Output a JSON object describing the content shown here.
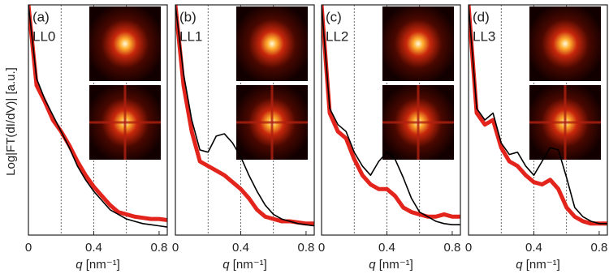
{
  "chart_data": [
    {
      "type": "line",
      "panel": "(a)",
      "label": "LL0",
      "ylabel": "Log|FT(dI/dV)| [a.u.]",
      "x_symbol": "q",
      "x_unit": "[nm⁻¹]",
      "x": [
        0,
        0.05,
        0.1,
        0.15,
        0.2,
        0.25,
        0.3,
        0.35,
        0.4,
        0.45,
        0.5,
        0.55,
        0.6,
        0.65,
        0.7,
        0.75,
        0.8,
        0.85
      ],
      "xlim": [
        0,
        0.85
      ],
      "xticks": [
        0,
        0.4,
        0.8
      ],
      "xgrid": [
        0.2,
        0.4,
        0.6
      ],
      "ylim": [
        0,
        10
      ],
      "series": [
        {
          "color": "#e2241c",
          "values": [
            10,
            6.5,
            5.8,
            5.0,
            4.5,
            3.9,
            3.2,
            2.6,
            2.1,
            1.7,
            1.3,
            1.0,
            0.9,
            0.8,
            0.75,
            0.7,
            0.7,
            0.65
          ]
        },
        {
          "color": "#000000",
          "values": [
            10,
            6.8,
            5.9,
            5.2,
            4.5,
            3.8,
            3.0,
            2.4,
            1.9,
            1.5,
            1.1,
            0.9,
            0.7,
            0.6,
            0.5,
            0.45,
            0.4,
            0.35
          ]
        }
      ]
    },
    {
      "type": "line",
      "panel": "(b)",
      "label": "LL1",
      "x_symbol": "q",
      "x_unit": "[nm⁻¹]",
      "x": [
        0,
        0.05,
        0.1,
        0.15,
        0.2,
        0.25,
        0.3,
        0.35,
        0.4,
        0.45,
        0.5,
        0.55,
        0.6,
        0.65,
        0.7,
        0.75,
        0.8,
        0.85
      ],
      "xlim": [
        0,
        0.85
      ],
      "xticks": [
        0,
        0.4,
        0.8
      ],
      "xgrid": [
        0.2,
        0.4,
        0.6
      ],
      "ylim": [
        0,
        10
      ],
      "series": [
        {
          "color": "#e2241c",
          "values": [
            10,
            6.5,
            4.5,
            3.2,
            3.0,
            2.8,
            2.6,
            2.3,
            2.0,
            1.6,
            1.1,
            0.8,
            0.7,
            0.6,
            0.6,
            0.55,
            0.5,
            0.5
          ]
        },
        {
          "color": "#000000",
          "values": [
            10,
            7.0,
            5.0,
            3.7,
            3.6,
            4.3,
            4.4,
            4.0,
            3.4,
            2.6,
            1.9,
            1.3,
            0.9,
            0.7,
            0.6,
            0.5,
            0.45,
            0.4
          ]
        }
      ]
    },
    {
      "type": "line",
      "panel": "(c)",
      "label": "LL2",
      "x_symbol": "q",
      "x_unit": "[nm⁻¹]",
      "x": [
        0,
        0.05,
        0.1,
        0.15,
        0.2,
        0.25,
        0.3,
        0.35,
        0.4,
        0.45,
        0.5,
        0.55,
        0.6,
        0.65,
        0.7,
        0.75,
        0.8,
        0.85
      ],
      "xlim": [
        0,
        0.85
      ],
      "xticks": [
        0,
        0.4,
        0.8
      ],
      "xgrid": [
        0.2,
        0.4,
        0.6
      ],
      "ylim": [
        0,
        10
      ],
      "series": [
        {
          "color": "#e2241c",
          "values": [
            10,
            5.3,
            4.5,
            4.2,
            3.3,
            2.6,
            2.2,
            2.0,
            2.0,
            1.7,
            1.2,
            1.0,
            0.9,
            0.8,
            0.8,
            0.9,
            0.8,
            0.8
          ]
        },
        {
          "color": "#000000",
          "values": [
            10,
            5.5,
            4.8,
            4.5,
            3.6,
            3.0,
            2.6,
            3.2,
            3.6,
            3.3,
            2.5,
            1.6,
            1.0,
            0.8,
            0.6,
            0.5,
            0.45,
            0.45
          ]
        }
      ]
    },
    {
      "type": "line",
      "panel": "(d)",
      "label": "LL3",
      "x_symbol": "q",
      "x_unit": "[nm⁻¹]",
      "x": [
        0,
        0.05,
        0.1,
        0.15,
        0.2,
        0.25,
        0.3,
        0.35,
        0.4,
        0.45,
        0.5,
        0.55,
        0.6,
        0.65,
        0.7,
        0.75,
        0.8,
        0.85
      ],
      "xlim": [
        0,
        0.85
      ],
      "xticks": [
        0,
        0.4,
        0.8
      ],
      "xgrid": [
        0.2,
        0.4,
        0.6
      ],
      "ylim": [
        0,
        10
      ],
      "series": [
        {
          "color": "#e2241c",
          "values": [
            10,
            5.3,
            4.8,
            5.0,
            3.8,
            3.2,
            3.0,
            2.6,
            2.3,
            2.2,
            2.4,
            2.0,
            1.2,
            0.8,
            0.6,
            0.5,
            0.5,
            0.5
          ]
        },
        {
          "color": "#000000",
          "values": [
            10,
            5.5,
            5.0,
            5.3,
            4.0,
            3.5,
            3.6,
            3.0,
            2.6,
            3.2,
            3.8,
            3.7,
            2.5,
            1.2,
            0.8,
            0.6,
            0.5,
            0.5
          ]
        }
      ]
    }
  ]
}
